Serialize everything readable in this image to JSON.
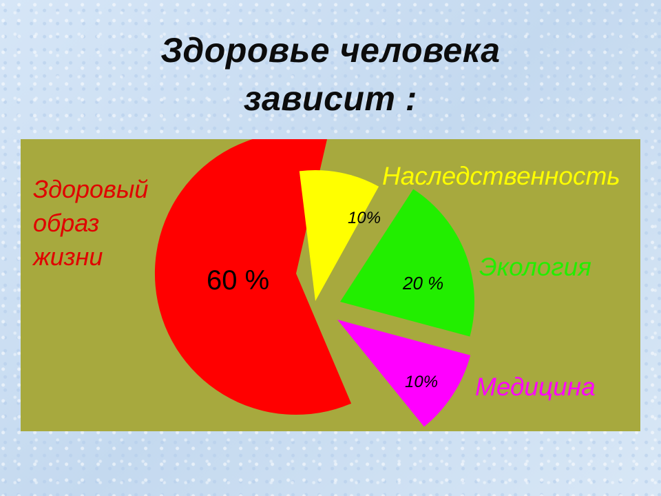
{
  "title_line1": "Здоровье человека",
  "title_line2": "зависит :",
  "chart_data": {
    "type": "pie",
    "slices": [
      {
        "label": "Здоровый образ жизни",
        "label_lines": [
          "Здоровый",
          "образ",
          "жизни"
        ],
        "value": 60,
        "value_label": "60 %",
        "color": "#ff0000"
      },
      {
        "label": "Наследственность",
        "value": 10,
        "value_label": "10%",
        "color": "#ffff00"
      },
      {
        "label": "Экология",
        "value": 20,
        "value_label": "20 %",
        "color": "#22ee00"
      },
      {
        "label": "Медицина",
        "value": 10,
        "value_label": "10%",
        "color": "#ff00ff"
      }
    ],
    "legend_text_colors": [
      "#e00000",
      "#ffff00",
      "#22ee00",
      "#ff00ff"
    ],
    "panel_color": "#a7a93e"
  }
}
